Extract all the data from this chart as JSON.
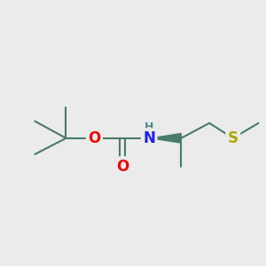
{
  "background_color": "#ebebeb",
  "bond_color": "#4a7a6a",
  "bond_width": 1.5,
  "atom_colors": {
    "O": "#ee0000",
    "N": "#2020ee",
    "H": "#4a8888",
    "S": "#aaaa00",
    "C": "#4a7a6a"
  },
  "figsize": [
    3.0,
    3.0
  ],
  "dpi": 100
}
